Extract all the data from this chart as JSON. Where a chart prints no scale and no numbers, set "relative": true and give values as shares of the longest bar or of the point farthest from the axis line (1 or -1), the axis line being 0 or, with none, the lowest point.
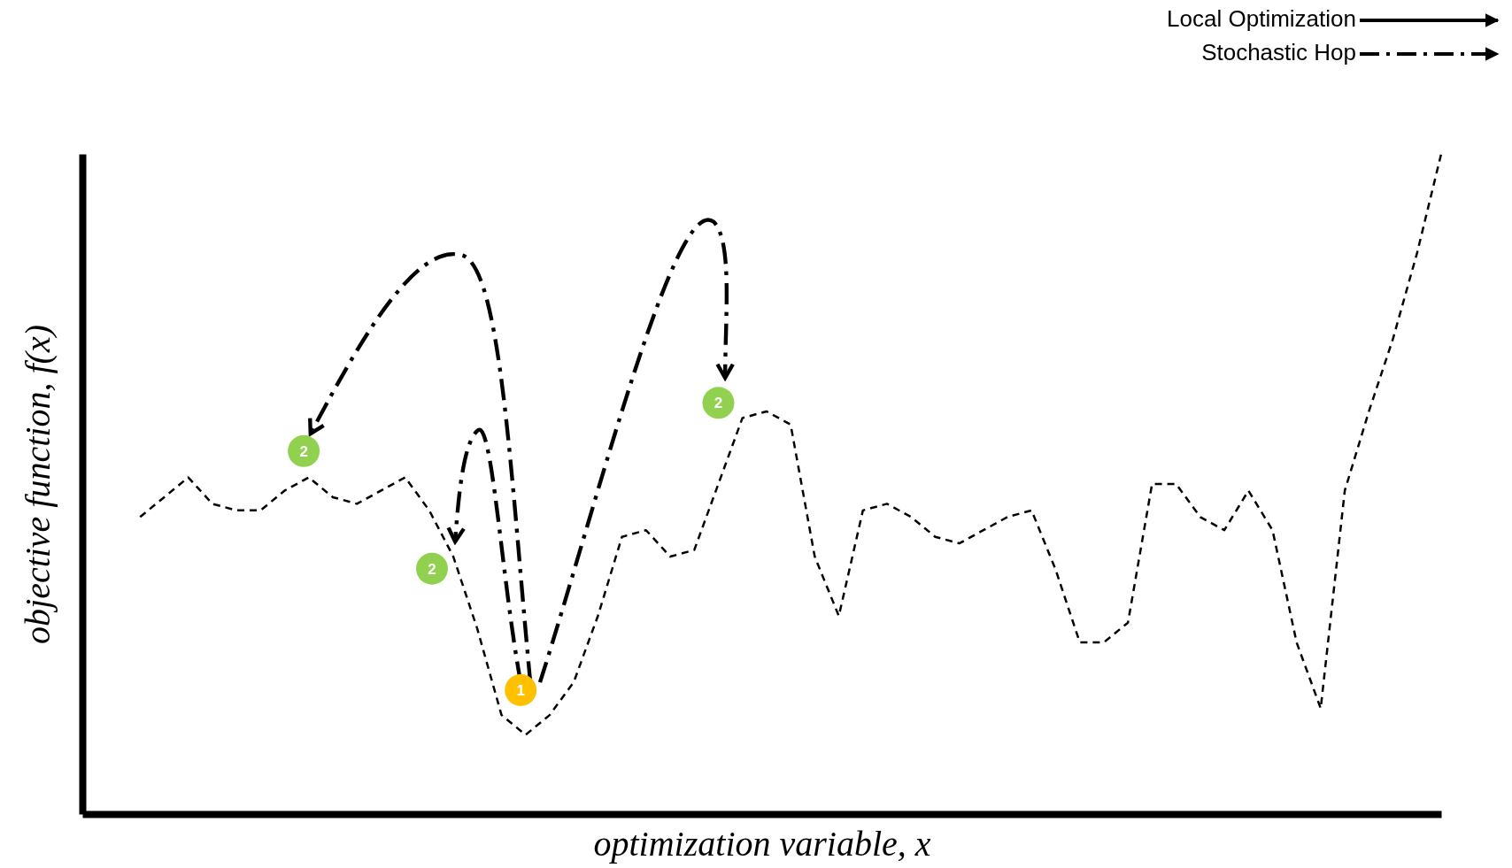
{
  "chart_data": {
    "type": "line",
    "relative": true,
    "xlabel": "optimization variable, x",
    "ylabel": "objective function, f(x)",
    "annotations": [
      "Local Optimization",
      "Stochastic Hop",
      "2",
      "2",
      "1",
      "2"
    ],
    "categories": [
      null,
      null,
      null,
      null,
      null,
      null,
      null,
      null,
      null,
      null,
      null,
      null,
      null,
      null,
      null,
      null,
      null,
      null,
      null,
      null,
      null,
      null,
      null,
      null,
      null,
      null,
      null,
      null,
      null,
      null,
      null,
      null,
      null,
      null,
      null,
      null,
      null,
      null,
      null,
      null,
      null,
      null,
      null,
      null,
      null,
      null,
      null,
      null,
      null,
      null,
      null,
      null,
      null,
      null,
      null
    ],
    "series": [
      {
        "color": "#000000",
        "line_style": "dashed",
        "values": [
          0.45,
          0.48,
          0.51,
          0.47,
          0.46,
          0.46,
          0.49,
          0.51,
          0.48,
          0.47,
          0.49,
          0.51,
          0.46,
          0.39,
          0.28,
          0.15,
          0.12,
          0.15,
          0.2,
          0.3,
          0.42,
          0.43,
          0.39,
          0.4,
          0.5,
          0.6,
          0.61,
          0.59,
          0.39,
          0.3,
          0.46,
          0.47,
          0.45,
          0.42,
          0.41,
          0.43,
          0.45,
          0.46,
          0.37,
          0.26,
          0.26,
          0.29,
          0.5,
          0.5,
          0.45,
          0.43,
          0.49,
          0.43,
          0.26,
          0.16,
          0.49,
          0.61,
          0.72,
          0.85,
          1
        ]
      }
    ]
  }
}
